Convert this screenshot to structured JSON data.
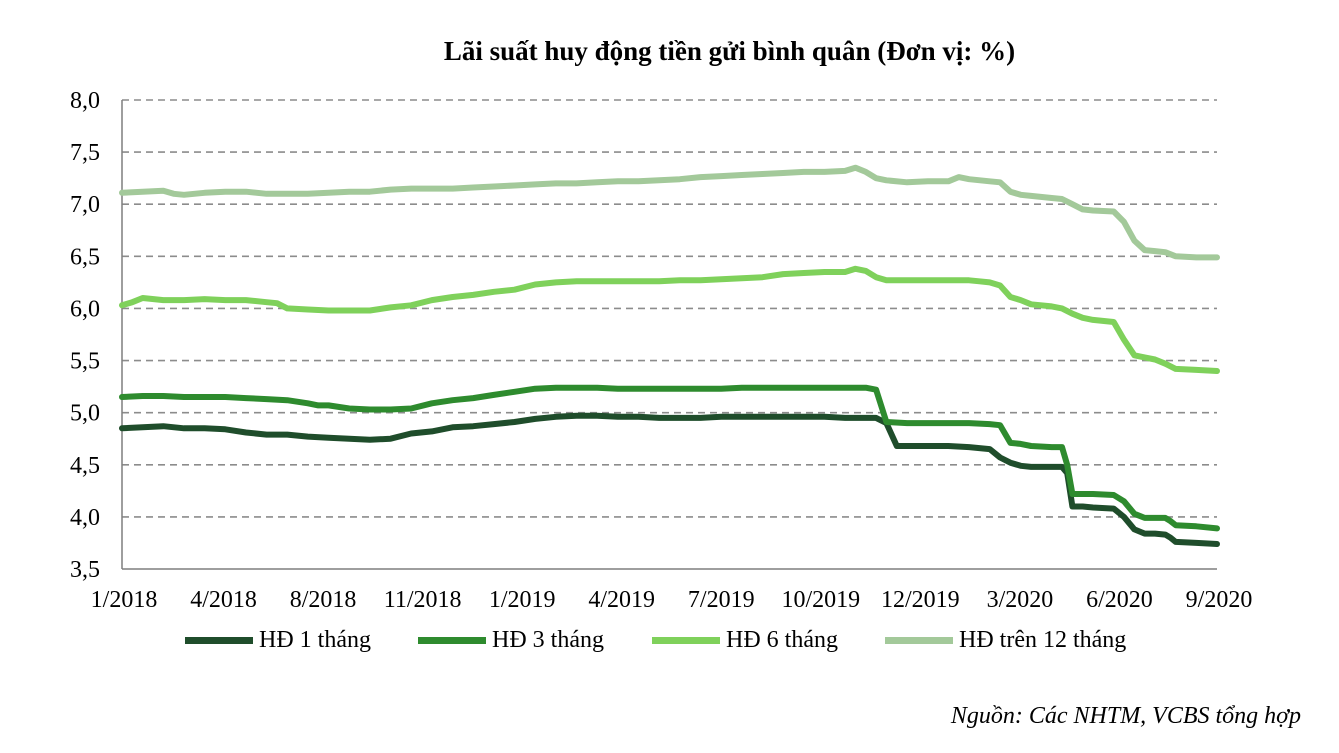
{
  "chart_data": {
    "type": "line",
    "title": "Lãi suất huy động tiền gửi bình quân (Đơn vị: %)",
    "xlabel": "",
    "ylabel": "",
    "ylim": [
      3.5,
      8.0
    ],
    "yticks": [
      "3,5",
      "4,0",
      "4,5",
      "5,0",
      "5,5",
      "6,0",
      "6,5",
      "7,0",
      "7,5",
      "8,0"
    ],
    "ytick_values": [
      3.5,
      4.0,
      4.5,
      5.0,
      5.5,
      6.0,
      6.5,
      7.0,
      7.5,
      8.0
    ],
    "xtick_labels": [
      "1/2018",
      "4/2018",
      "8/2018",
      "11/2018",
      "1/2019",
      "4/2019",
      "7/2019",
      "10/2019",
      "12/2019",
      "3/2020",
      "6/2020",
      "9/2020"
    ],
    "x_index_range": [
      0,
      100
    ],
    "grid": "horizontal dashed",
    "legend_position": "bottom",
    "series": [
      {
        "name": "HĐ 1 tháng",
        "color": "#1f4d2b",
        "points": [
          [
            0,
            4.85
          ],
          [
            2,
            4.86
          ],
          [
            4,
            4.87
          ],
          [
            6,
            4.85
          ],
          [
            8,
            4.85
          ],
          [
            10,
            4.84
          ],
          [
            12,
            4.81
          ],
          [
            14,
            4.79
          ],
          [
            16,
            4.79
          ],
          [
            18,
            4.77
          ],
          [
            20,
            4.76
          ],
          [
            22,
            4.75
          ],
          [
            24,
            4.74
          ],
          [
            26,
            4.75
          ],
          [
            28,
            4.8
          ],
          [
            30,
            4.82
          ],
          [
            32,
            4.86
          ],
          [
            34,
            4.87
          ],
          [
            36,
            4.89
          ],
          [
            38,
            4.91
          ],
          [
            40,
            4.94
          ],
          [
            42,
            4.96
          ],
          [
            44,
            4.97
          ],
          [
            46,
            4.97
          ],
          [
            48,
            4.96
          ],
          [
            50,
            4.96
          ],
          [
            52,
            4.95
          ],
          [
            54,
            4.95
          ],
          [
            56,
            4.95
          ],
          [
            58,
            4.96
          ],
          [
            60,
            4.96
          ],
          [
            62,
            4.96
          ],
          [
            64,
            4.96
          ],
          [
            66,
            4.96
          ],
          [
            68,
            4.96
          ],
          [
            70,
            4.95
          ],
          [
            72,
            4.95
          ],
          [
            73,
            4.95
          ],
          [
            74,
            4.9
          ],
          [
            75,
            4.68
          ],
          [
            76,
            4.68
          ],
          [
            78,
            4.68
          ],
          [
            80,
            4.68
          ],
          [
            82,
            4.67
          ],
          [
            83,
            4.66
          ],
          [
            84,
            4.65
          ],
          [
            85,
            4.57
          ],
          [
            86,
            4.52
          ],
          [
            87,
            4.49
          ],
          [
            88,
            4.48
          ],
          [
            90,
            4.48
          ],
          [
            91,
            4.48
          ],
          [
            91.5,
            4.42
          ],
          [
            92,
            4.1
          ],
          [
            93,
            4.1
          ],
          [
            94,
            4.09
          ],
          [
            96,
            4.08
          ],
          [
            97,
            4.0
          ],
          [
            98,
            3.88
          ],
          [
            99,
            3.84
          ],
          [
            100,
            3.84
          ],
          [
            101,
            3.83
          ],
          [
            101.5,
            3.8
          ],
          [
            102,
            3.76
          ],
          [
            104,
            3.75
          ],
          [
            106,
            3.74
          ]
        ]
      },
      {
        "name": "HĐ 3 tháng",
        "color": "#2e8b2e",
        "points": [
          [
            0,
            5.15
          ],
          [
            2,
            5.16
          ],
          [
            4,
            5.16
          ],
          [
            6,
            5.15
          ],
          [
            8,
            5.15
          ],
          [
            10,
            5.15
          ],
          [
            12,
            5.14
          ],
          [
            14,
            5.13
          ],
          [
            16,
            5.12
          ],
          [
            18,
            5.09
          ],
          [
            19,
            5.07
          ],
          [
            20,
            5.07
          ],
          [
            22,
            5.04
          ],
          [
            24,
            5.03
          ],
          [
            26,
            5.03
          ],
          [
            28,
            5.04
          ],
          [
            30,
            5.09
          ],
          [
            32,
            5.12
          ],
          [
            34,
            5.14
          ],
          [
            36,
            5.17
          ],
          [
            38,
            5.2
          ],
          [
            40,
            5.23
          ],
          [
            42,
            5.24
          ],
          [
            44,
            5.24
          ],
          [
            46,
            5.24
          ],
          [
            48,
            5.23
          ],
          [
            50,
            5.23
          ],
          [
            52,
            5.23
          ],
          [
            54,
            5.23
          ],
          [
            56,
            5.23
          ],
          [
            58,
            5.23
          ],
          [
            60,
            5.24
          ],
          [
            62,
            5.24
          ],
          [
            64,
            5.24
          ],
          [
            66,
            5.24
          ],
          [
            68,
            5.24
          ],
          [
            70,
            5.24
          ],
          [
            72,
            5.24
          ],
          [
            73,
            5.22
          ],
          [
            74,
            4.91
          ],
          [
            76,
            4.9
          ],
          [
            78,
            4.9
          ],
          [
            80,
            4.9
          ],
          [
            82,
            4.9
          ],
          [
            84,
            4.89
          ],
          [
            85,
            4.88
          ],
          [
            86,
            4.71
          ],
          [
            87,
            4.7
          ],
          [
            88,
            4.68
          ],
          [
            90,
            4.67
          ],
          [
            91,
            4.67
          ],
          [
            91.5,
            4.5
          ],
          [
            92,
            4.22
          ],
          [
            94,
            4.22
          ],
          [
            96,
            4.21
          ],
          [
            97,
            4.15
          ],
          [
            98,
            4.03
          ],
          [
            99,
            3.99
          ],
          [
            100,
            3.99
          ],
          [
            101,
            3.99
          ],
          [
            101.5,
            3.96
          ],
          [
            102,
            3.92
          ],
          [
            104,
            3.91
          ],
          [
            106,
            3.89
          ]
        ]
      },
      {
        "name": "HĐ 6 tháng",
        "color": "#7fd15b",
        "points": [
          [
            0,
            6.03
          ],
          [
            1,
            6.06
          ],
          [
            2,
            6.1
          ],
          [
            4,
            6.08
          ],
          [
            6,
            6.08
          ],
          [
            8,
            6.09
          ],
          [
            10,
            6.08
          ],
          [
            12,
            6.08
          ],
          [
            14,
            6.06
          ],
          [
            15,
            6.05
          ],
          [
            16,
            6.0
          ],
          [
            18,
            5.99
          ],
          [
            20,
            5.98
          ],
          [
            22,
            5.98
          ],
          [
            24,
            5.98
          ],
          [
            26,
            6.01
          ],
          [
            28,
            6.03
          ],
          [
            30,
            6.08
          ],
          [
            32,
            6.11
          ],
          [
            34,
            6.13
          ],
          [
            36,
            6.16
          ],
          [
            38,
            6.18
          ],
          [
            40,
            6.23
          ],
          [
            42,
            6.25
          ],
          [
            44,
            6.26
          ],
          [
            46,
            6.26
          ],
          [
            48,
            6.26
          ],
          [
            50,
            6.26
          ],
          [
            52,
            6.26
          ],
          [
            54,
            6.27
          ],
          [
            56,
            6.27
          ],
          [
            58,
            6.28
          ],
          [
            60,
            6.29
          ],
          [
            62,
            6.3
          ],
          [
            64,
            6.33
          ],
          [
            66,
            6.34
          ],
          [
            68,
            6.35
          ],
          [
            70,
            6.35
          ],
          [
            71,
            6.38
          ],
          [
            72,
            6.36
          ],
          [
            73,
            6.3
          ],
          [
            74,
            6.27
          ],
          [
            76,
            6.27
          ],
          [
            78,
            6.27
          ],
          [
            80,
            6.27
          ],
          [
            82,
            6.27
          ],
          [
            83,
            6.26
          ],
          [
            84,
            6.25
          ],
          [
            85,
            6.22
          ],
          [
            86,
            6.11
          ],
          [
            87,
            6.08
          ],
          [
            88,
            6.04
          ],
          [
            90,
            6.02
          ],
          [
            91,
            6.0
          ],
          [
            92,
            5.95
          ],
          [
            93,
            5.91
          ],
          [
            94,
            5.89
          ],
          [
            96,
            5.87
          ],
          [
            97,
            5.7
          ],
          [
            98,
            5.55
          ],
          [
            99,
            5.53
          ],
          [
            100,
            5.51
          ],
          [
            101,
            5.47
          ],
          [
            102,
            5.42
          ],
          [
            104,
            5.41
          ],
          [
            106,
            5.4
          ]
        ]
      },
      {
        "name": "HĐ trên 12 tháng",
        "color": "#a3c99a",
        "points": [
          [
            0,
            7.11
          ],
          [
            2,
            7.12
          ],
          [
            4,
            7.13
          ],
          [
            5,
            7.1
          ],
          [
            6,
            7.09
          ],
          [
            8,
            7.11
          ],
          [
            10,
            7.12
          ],
          [
            12,
            7.12
          ],
          [
            14,
            7.1
          ],
          [
            16,
            7.1
          ],
          [
            18,
            7.1
          ],
          [
            20,
            7.11
          ],
          [
            22,
            7.12
          ],
          [
            24,
            7.12
          ],
          [
            26,
            7.14
          ],
          [
            28,
            7.15
          ],
          [
            30,
            7.15
          ],
          [
            32,
            7.15
          ],
          [
            34,
            7.16
          ],
          [
            36,
            7.17
          ],
          [
            38,
            7.18
          ],
          [
            40,
            7.19
          ],
          [
            42,
            7.2
          ],
          [
            44,
            7.2
          ],
          [
            46,
            7.21
          ],
          [
            48,
            7.22
          ],
          [
            50,
            7.22
          ],
          [
            52,
            7.23
          ],
          [
            54,
            7.24
          ],
          [
            56,
            7.26
          ],
          [
            58,
            7.27
          ],
          [
            60,
            7.28
          ],
          [
            62,
            7.29
          ],
          [
            64,
            7.3
          ],
          [
            66,
            7.31
          ],
          [
            68,
            7.31
          ],
          [
            70,
            7.32
          ],
          [
            71,
            7.35
          ],
          [
            72,
            7.31
          ],
          [
            73,
            7.25
          ],
          [
            74,
            7.23
          ],
          [
            76,
            7.21
          ],
          [
            78,
            7.22
          ],
          [
            80,
            7.22
          ],
          [
            81,
            7.26
          ],
          [
            82,
            7.24
          ],
          [
            84,
            7.22
          ],
          [
            85,
            7.21
          ],
          [
            86,
            7.12
          ],
          [
            87,
            7.09
          ],
          [
            88,
            7.08
          ],
          [
            90,
            7.06
          ],
          [
            91,
            7.05
          ],
          [
            92,
            7.0
          ],
          [
            93,
            6.95
          ],
          [
            94,
            6.94
          ],
          [
            96,
            6.93
          ],
          [
            97,
            6.83
          ],
          [
            98,
            6.65
          ],
          [
            99,
            6.56
          ],
          [
            100,
            6.55
          ],
          [
            101,
            6.54
          ],
          [
            102,
            6.5
          ],
          [
            104,
            6.49
          ],
          [
            106,
            6.49
          ]
        ]
      }
    ]
  },
  "source_note": "Nguồn: Các NHTM, VCBS tổng hợp"
}
